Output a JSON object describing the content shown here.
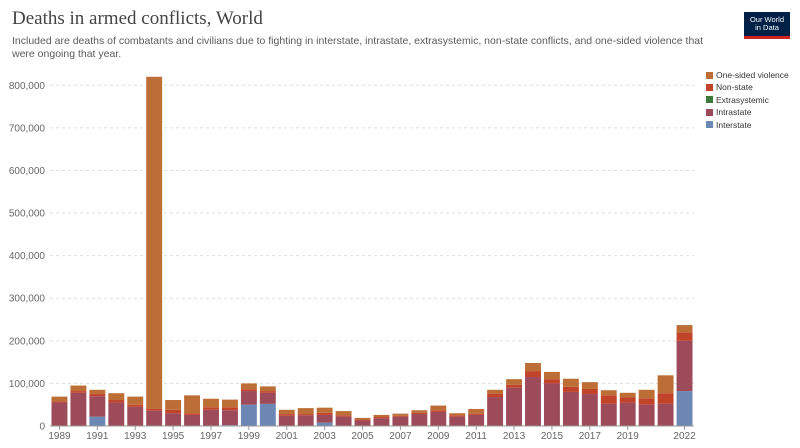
{
  "header": {
    "title": "Deaths in armed conflicts, World",
    "subtitle": "Included are deaths of combatants and civilians due to fighting in interstate, intrastate, extrasystemic, non-state conflicts, and one-sided violence that were ongoing that year.",
    "logo_line1": "Our World",
    "logo_line2": "in Data"
  },
  "chart_data": {
    "type": "bar",
    "stacked": true,
    "title": "Deaths in armed conflicts, World",
    "xlabel": "",
    "ylabel": "",
    "ylim": [
      0,
      850000
    ],
    "y_ticks": [
      0,
      100000,
      200000,
      300000,
      400000,
      500000,
      600000,
      700000,
      800000
    ],
    "y_tick_labels": [
      "0",
      "100,000",
      "200,000",
      "300,000",
      "400,000",
      "500,000",
      "600,000",
      "700,000",
      "800,000"
    ],
    "x_tick_labels": [
      "1989",
      "1991",
      "1993",
      "1995",
      "1997",
      "1999",
      "2001",
      "2003",
      "2005",
      "2007",
      "2009",
      "2011",
      "2013",
      "2015",
      "2017",
      "2019",
      "2022"
    ],
    "grid": "horizontal-dotted",
    "legend_position": "right",
    "categories": [
      1989,
      1990,
      1991,
      1992,
      1993,
      1994,
      1995,
      1996,
      1997,
      1998,
      1999,
      2000,
      2001,
      2002,
      2003,
      2004,
      2005,
      2006,
      2007,
      2008,
      2009,
      2010,
      2011,
      2012,
      2013,
      2014,
      2015,
      2016,
      2017,
      2018,
      2019,
      2020,
      2021,
      2022
    ],
    "series": [
      {
        "name": "Interstate",
        "color": "#6d87b4",
        "values": [
          0,
          0,
          22000,
          0,
          0,
          0,
          0,
          0,
          0,
          2000,
          50000,
          52000,
          0,
          0,
          8000,
          0,
          0,
          0,
          0,
          0,
          0,
          0,
          0,
          0,
          0,
          0,
          0,
          0,
          0,
          0,
          0,
          0,
          0,
          82000
        ]
      },
      {
        "name": "Intrastate",
        "color": "#9d4a5a",
        "values": [
          55000,
          78000,
          48000,
          55000,
          45000,
          36000,
          30000,
          26000,
          38000,
          35000,
          32000,
          26000,
          24000,
          25000,
          18000,
          22000,
          13000,
          18000,
          22000,
          28000,
          33000,
          22000,
          26000,
          68000,
          90000,
          115000,
          100000,
          80000,
          75000,
          52000,
          55000,
          50000,
          52000,
          118000
        ]
      },
      {
        "name": "Extrasystemic",
        "color": "#3c7a3c",
        "values": [
          0,
          0,
          0,
          0,
          0,
          0,
          0,
          0,
          0,
          0,
          0,
          0,
          0,
          0,
          0,
          0,
          0,
          0,
          0,
          0,
          0,
          0,
          0,
          0,
          0,
          0,
          0,
          0,
          0,
          0,
          0,
          0,
          0,
          0
        ]
      },
      {
        "name": "Non-state",
        "color": "#c1432a",
        "values": [
          3000,
          4000,
          5000,
          6000,
          5000,
          4000,
          8000,
          4000,
          6000,
          7000,
          4000,
          4000,
          4000,
          3000,
          5000,
          3000,
          2000,
          3000,
          2000,
          3000,
          4000,
          3000,
          3000,
          8000,
          7000,
          13000,
          10000,
          12000,
          12000,
          20000,
          12000,
          15000,
          25000,
          20000
        ]
      },
      {
        "name": "One-sided violence",
        "color": "#bd6e36",
        "values": [
          11000,
          13000,
          10000,
          16000,
          19000,
          780000,
          23000,
          42000,
          20000,
          18000,
          14000,
          11000,
          10000,
          14000,
          12000,
          10000,
          4000,
          5000,
          5000,
          6000,
          11000,
          5000,
          11000,
          9000,
          13000,
          20000,
          17000,
          19000,
          16000,
          12000,
          11000,
          20000,
          42000,
          17000
        ]
      }
    ]
  },
  "legend": {
    "items": [
      {
        "label": "One-sided violence",
        "color": "#bd6e36"
      },
      {
        "label": "Non-state",
        "color": "#c1432a"
      },
      {
        "label": "Extrasystemic",
        "color": "#3c7a3c"
      },
      {
        "label": "Intrastate",
        "color": "#9d4a5a"
      },
      {
        "label": "Interstate",
        "color": "#6d87b4"
      }
    ]
  }
}
